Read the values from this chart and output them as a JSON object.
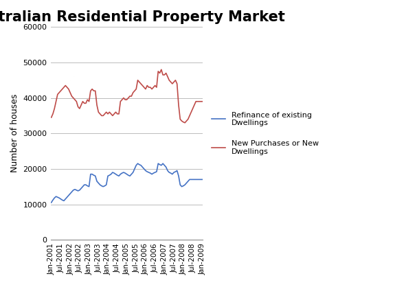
{
  "title": "Australian Residential Property Market",
  "ylabel": "Number of houses",
  "ylim": [
    0,
    60000
  ],
  "yticks": [
    0,
    10000,
    20000,
    30000,
    40000,
    50000,
    60000
  ],
  "background_color": "#ffffff",
  "title_fontsize": 15,
  "legend_entries": [
    "Refinance of existing\nDwellings",
    "New Purchases or New\nDwellings"
  ],
  "blue_color": "#4472c4",
  "red_color": "#be4b48",
  "xtick_labels": [
    "Jan-2001",
    "Jul-2001",
    "Jan-2002",
    "Jul-2002",
    "Jan-2003",
    "Jul-2003",
    "Jan-2004",
    "Jul-2004",
    "Jan-2005",
    "Jul-2005",
    "Jan-2006",
    "Jul-2006",
    "Jan-2007",
    "Jul-2007",
    "Jan-2008",
    "Jul-2008",
    "Jan-2009"
  ],
  "blue_values": [
    10500,
    11200,
    11800,
    12200,
    12000,
    11800,
    11500,
    11200,
    11000,
    11500,
    12000,
    12500,
    13000,
    13500,
    14000,
    14200,
    14000,
    13800,
    14000,
    14500,
    15000,
    15500,
    15500,
    15200,
    15000,
    18500,
    18500,
    18200,
    18000,
    16500,
    16000,
    15500,
    15200,
    15000,
    15200,
    15500,
    18000,
    18200,
    18500,
    19000,
    18800,
    18500,
    18200,
    18000,
    18500,
    18800,
    19000,
    18800,
    18500,
    18200,
    18000,
    18500,
    19000,
    20000,
    21000,
    21500,
    21200,
    21000,
    20500,
    20000,
    19500,
    19200,
    19000,
    18800,
    18500,
    18800,
    19000,
    19200,
    21500,
    21200,
    21000,
    21500,
    21000,
    20500,
    19500,
    19000,
    18800,
    18500,
    19000,
    19200,
    19500,
    18000,
    15500,
    15000,
    15200,
    15500,
    16000,
    16500,
    17000,
    17000,
    17000,
    17000,
    17000,
    17000,
    17000,
    17000,
    17000
  ],
  "red_values": [
    34500,
    35500,
    37000,
    39000,
    41000,
    41500,
    42000,
    42500,
    43000,
    43500,
    43000,
    42500,
    41500,
    40500,
    40000,
    39500,
    39000,
    37500,
    37000,
    38000,
    39000,
    38500,
    38500,
    39500,
    39000,
    42000,
    42500,
    42000,
    42000,
    38000,
    36000,
    35500,
    35000,
    35000,
    35500,
    36000,
    35500,
    36000,
    35500,
    35000,
    35500,
    36000,
    35500,
    35500,
    39000,
    39500,
    40000,
    39500,
    39500,
    40000,
    40500,
    40500,
    41500,
    42000,
    42500,
    45000,
    44500,
    44000,
    43500,
    43000,
    42500,
    43500,
    43000,
    43000,
    42500,
    43000,
    43500,
    43000,
    47500,
    47000,
    48000,
    46500,
    46500,
    47000,
    46000,
    45000,
    44500,
    44000,
    44500,
    45000,
    44000,
    38000,
    34000,
    33500,
    33200,
    33000,
    33500,
    34000,
    35000,
    36000,
    37000,
    38000,
    39000,
    39000,
    39000,
    39000,
    39000
  ],
  "n_points": 97
}
